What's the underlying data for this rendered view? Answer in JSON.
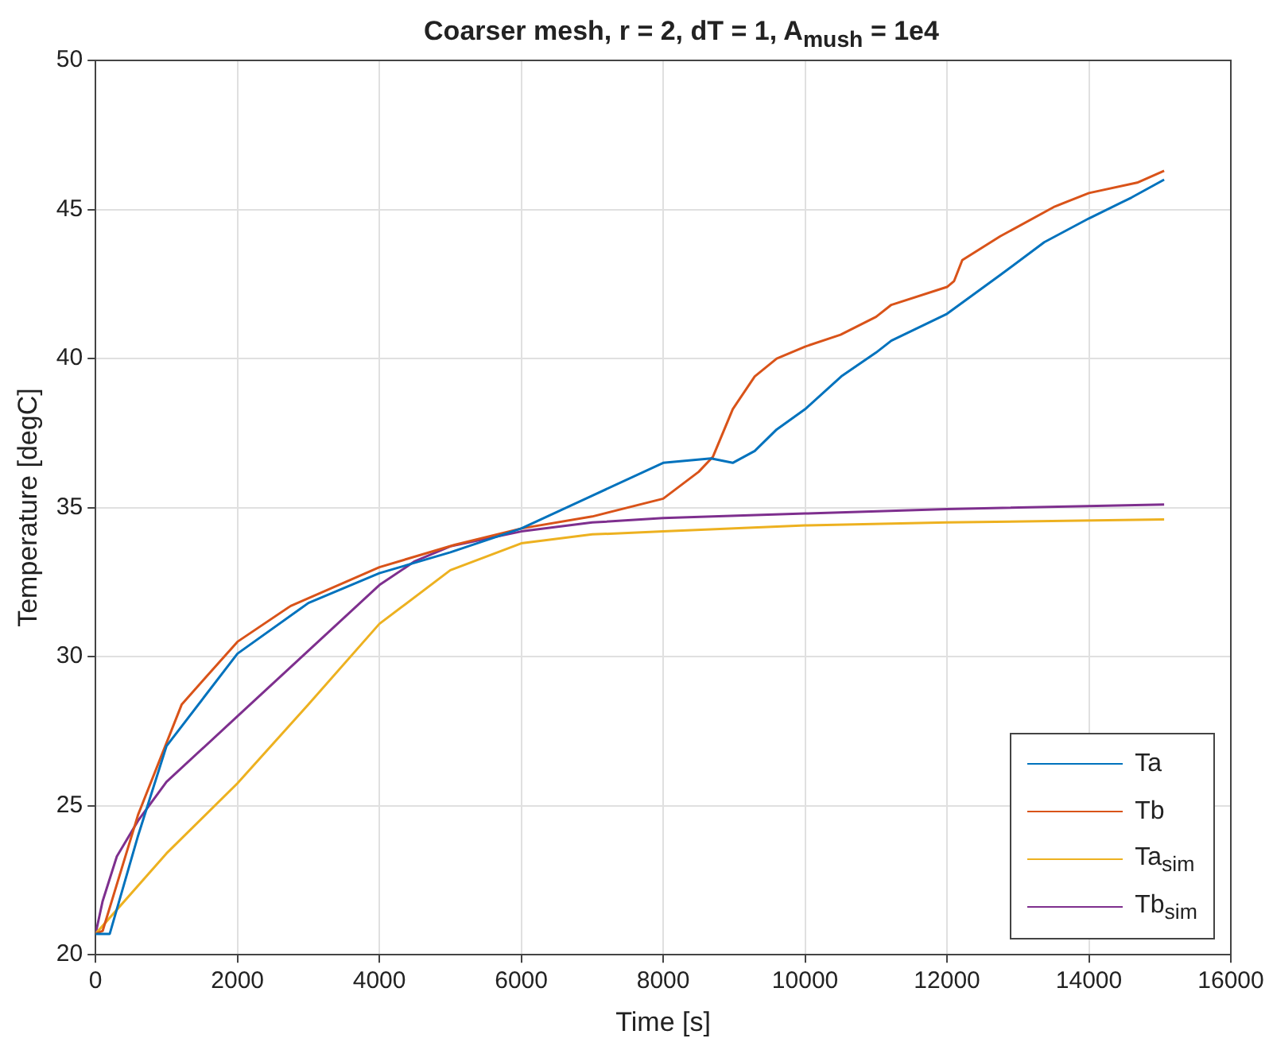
{
  "chart_data": {
    "type": "line",
    "title": "Coarser mesh, r = 2, dT = 1, A$_{mush}$ = 1e4",
    "xlabel": "Time [s]",
    "ylabel": "Temperature [degC]",
    "xlim": [
      0,
      16000
    ],
    "xticks": [
      0,
      2000,
      4000,
      6000,
      8000,
      10000,
      12000,
      14000,
      16000
    ],
    "ylim": [
      20,
      50
    ],
    "yticks": [
      20,
      25,
      30,
      35,
      40,
      45,
      50
    ],
    "grid": true,
    "legend": "bottom right",
    "marker": "none",
    "line_style": "solid",
    "series": [
      {
        "name": "Ta",
        "color": "#0072bd",
        "x": [
          0,
          200,
          600,
          1000,
          2000,
          3000,
          4000,
          5000,
          6000,
          7000,
          8000,
          8674,
          8980,
          9290,
          9590,
          10000,
          10510,
          11000,
          11215,
          12000,
          12750,
          13370,
          14000,
          14600,
          15060
        ],
        "values": [
          20.7,
          20.7,
          24.0,
          27.0,
          30.1,
          31.8,
          32.8,
          33.5,
          34.3,
          35.4,
          36.5,
          36.65,
          36.5,
          36.9,
          37.6,
          38.3,
          39.4,
          40.2,
          40.6,
          41.5,
          42.8,
          43.9,
          44.7,
          45.4,
          46.0
        ]
      },
      {
        "name": "Tb",
        "color": "#d95319",
        "x": [
          0,
          100,
          600,
          1215,
          2000,
          2750,
          4000,
          5060,
          6000,
          7000,
          8000,
          8500,
          8700,
          8980,
          9290,
          9600,
          10000,
          10500,
          11000,
          11215,
          12000,
          12100,
          12215,
          12750,
          13520,
          14000,
          14680,
          15060
        ],
        "values": [
          20.7,
          20.8,
          24.7,
          28.4,
          30.5,
          31.7,
          33.0,
          33.75,
          34.3,
          34.7,
          35.3,
          36.2,
          36.7,
          38.3,
          39.4,
          40.0,
          40.4,
          40.8,
          41.4,
          41.8,
          42.4,
          42.6,
          43.3,
          44.1,
          45.1,
          45.55,
          45.9,
          46.3
        ]
      },
      {
        "name": "Ta$_{sim}$",
        "color": "#edb120",
        "x": [
          0,
          1000,
          2000,
          3000,
          4000,
          5000,
          6000,
          7000,
          8000,
          10000,
          12000,
          15060
        ],
        "values": [
          20.7,
          23.4,
          25.75,
          28.4,
          31.1,
          32.9,
          33.8,
          34.1,
          34.2,
          34.4,
          34.5,
          34.6
        ]
      },
      {
        "name": "Tb$_{sim}$",
        "color": "#7e2f8e",
        "x": [
          0,
          100,
          300,
          600,
          1000,
          2000,
          3000,
          4000,
          4500,
          5000,
          6000,
          7000,
          8000,
          10000,
          12000,
          15060
        ],
        "values": [
          20.7,
          21.8,
          23.3,
          24.5,
          25.8,
          28.0,
          30.2,
          32.4,
          33.2,
          33.7,
          34.2,
          34.5,
          34.65,
          34.8,
          34.95,
          35.1
        ]
      }
    ]
  }
}
